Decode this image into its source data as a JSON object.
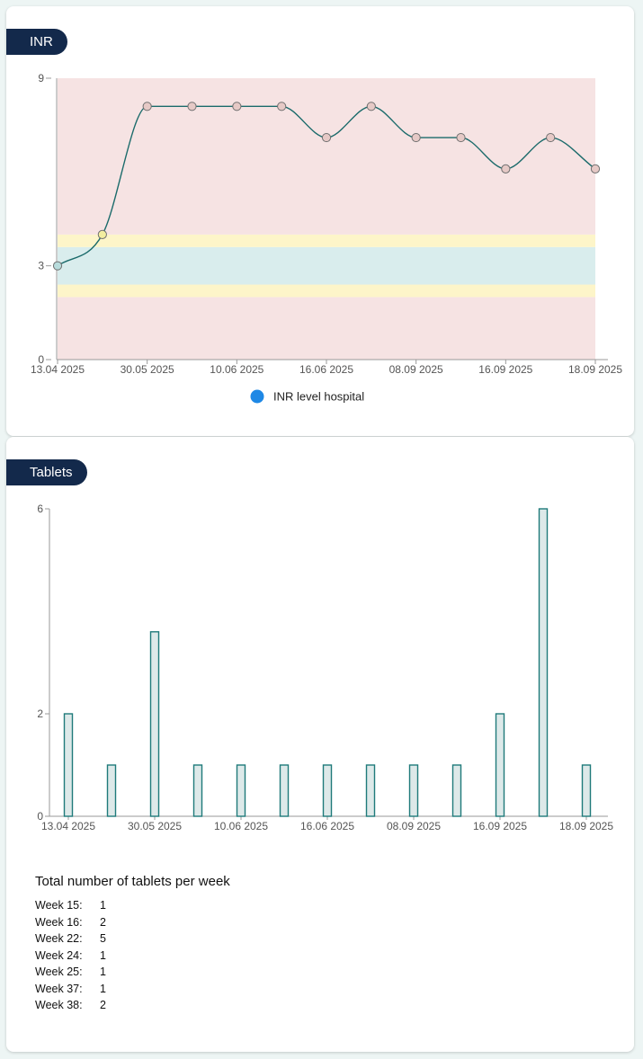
{
  "inr_card": {
    "title": "INR",
    "legend_label": "INR level hospital",
    "legend_color": "#1e88e5",
    "line_color": "#1b6b6b",
    "colors": {
      "danger_zone": "#f6e3e3",
      "warning_zone": "#fdf5c9",
      "target_zone": "#d9eded",
      "point_high": "#e6c9c6",
      "point_warning": "#f3eea0",
      "point_target": "#b8dcdc"
    }
  },
  "tablets_card": {
    "title": "Tablets",
    "bar_fill": "#dde9e9",
    "bar_stroke": "#1f7a7a",
    "summary_title": "Total number of tablets per week",
    "weeks": [
      {
        "week": "Week 15:",
        "count": "1"
      },
      {
        "week": "Week 16:",
        "count": "2"
      },
      {
        "week": "Week 22:",
        "count": "5"
      },
      {
        "week": "Week 24:",
        "count": "1"
      },
      {
        "week": "Week 25:",
        "count": "1"
      },
      {
        "week": "Week 37:",
        "count": "1"
      },
      {
        "week": "Week 38:",
        "count": "2"
      }
    ]
  },
  "chart_data": [
    {
      "type": "line",
      "x_ticks": [
        "13.04 2025",
        "30.05 2025",
        "10.06 2025",
        "16.06 2025",
        "08.09 2025",
        "16.09 2025",
        "18.09 2025"
      ],
      "y_ticks": [
        0,
        3,
        9
      ],
      "ylim": [
        0,
        9
      ],
      "zones": [
        {
          "name": "low",
          "from": 0,
          "to": 2.0,
          "level": "danger"
        },
        {
          "name": "low-warning",
          "from": 2.0,
          "to": 2.4,
          "level": "warning"
        },
        {
          "name": "target",
          "from": 2.4,
          "to": 3.6,
          "level": "target"
        },
        {
          "name": "high-warning",
          "from": 3.6,
          "to": 4.0,
          "level": "warning"
        },
        {
          "name": "high",
          "from": 4.0,
          "to": 9,
          "level": "danger"
        }
      ],
      "legend": [
        "INR level hospital"
      ],
      "grid": false,
      "series": [
        {
          "name": "INR level hospital",
          "values": [
            3.0,
            4.0,
            8.1,
            8.1,
            8.1,
            8.1,
            7.1,
            8.1,
            7.1,
            7.1,
            6.1,
            7.1,
            6.1
          ]
        }
      ]
    },
    {
      "type": "bar",
      "x_ticks": [
        "13.04 2025",
        "30.05 2025",
        "10.06 2025",
        "16.06 2025",
        "08.09 2025",
        "16.09 2025",
        "18.09 2025"
      ],
      "y_ticks": [
        0,
        2,
        6
      ],
      "ylim": [
        0,
        6
      ],
      "grid": false,
      "values": [
        2,
        1,
        3.6,
        1,
        1,
        1,
        1,
        1,
        1,
        1,
        2,
        6,
        1
      ]
    }
  ]
}
